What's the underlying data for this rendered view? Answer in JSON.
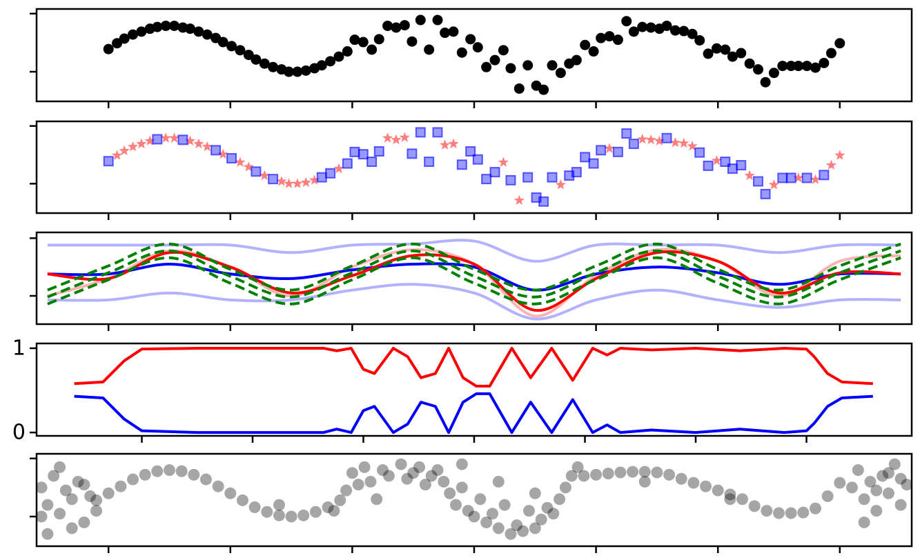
{
  "chart_data": [
    {
      "type": "scatter",
      "xlim": [
        -0.59,
        6.59
      ],
      "xticks": [
        0,
        1,
        2,
        3,
        4,
        5,
        6
      ],
      "ylim": [
        -0.51,
        1.08
      ],
      "yticks": [
        0,
        1
      ],
      "show_tick_labels": false,
      "series": [
        {
          "marker": "o",
          "color": "#000000",
          "alpha": 1,
          "x": [
            0,
            0.07,
            0.13,
            0.2,
            0.27,
            0.34,
            0.4,
            0.47,
            0.54,
            0.61,
            0.67,
            0.74,
            0.81,
            0.88,
            0.94,
            1.01,
            1.08,
            1.15,
            1.21,
            1.28,
            1.35,
            1.42,
            1.48,
            1.55,
            1.62,
            1.69,
            1.75,
            1.82,
            1.89,
            1.96,
            2.02,
            2.09,
            2.16,
            2.22,
            2.29,
            2.36,
            2.43,
            2.49,
            2.56,
            2.63,
            2.7,
            2.76,
            2.83,
            2.9,
            2.97,
            3.03,
            3.1,
            3.17,
            3.24,
            3.3,
            3.37,
            3.44,
            3.51,
            3.57,
            3.64,
            3.71,
            3.78,
            3.84,
            3.91,
            3.98,
            4.04,
            4.11,
            4.18,
            4.25,
            4.31,
            4.38,
            4.45,
            4.52,
            4.58,
            4.65,
            4.72,
            4.79,
            4.85,
            4.92,
            4.99,
            5.06,
            5.12,
            5.19,
            5.26,
            5.33,
            5.39,
            5.46,
            5.53,
            5.6,
            5.66,
            5.73,
            5.8,
            5.87,
            5.93,
            6.0
          ],
          "values": [
            0.39,
            0.49,
            0.57,
            0.64,
            0.69,
            0.74,
            0.77,
            0.79,
            0.79,
            0.76,
            0.74,
            0.69,
            0.64,
            0.58,
            0.51,
            0.44,
            0.37,
            0.29,
            0.21,
            0.14,
            0.08,
            0.04,
            0,
            0,
            0.02,
            0.06,
            0.11,
            0.18,
            0.26,
            0.35,
            0.55,
            0.51,
            0.38,
            0.56,
            0.79,
            0.76,
            0.8,
            0.52,
            0.89,
            0.38,
            0.89,
            0.67,
            0.69,
            0.33,
            0.56,
            0.42,
            0.08,
            0.2,
            0.37,
            0.06,
            -0.29,
            0.11,
            -0.24,
            -0.31,
            0.11,
            -0.02,
            0.14,
            0.2,
            0.46,
            0.35,
            0.58,
            0.61,
            0.55,
            0.87,
            0.69,
            0.77,
            0.76,
            0.74,
            0.79,
            0.71,
            0.7,
            0.65,
            0.54,
            0.31,
            0.4,
            0.38,
            0.26,
            0.32,
            0.14,
            0.04,
            -0.18,
            -0.02,
            0.1,
            0.1,
            0.1,
            0.1,
            0.07,
            0.15,
            0.32,
            0.49
          ]
        }
      ]
    },
    {
      "type": "scatter",
      "xlim": [
        -0.59,
        6.59
      ],
      "xticks": [
        0,
        1,
        2,
        3,
        4,
        5,
        6
      ],
      "ylim": [
        -0.51,
        1.08
      ],
      "yticks": [
        0,
        1
      ],
      "show_tick_labels": false,
      "series": [
        {
          "marker": "*",
          "color": "#ff0000",
          "alpha": 0.5,
          "x": [
            0.07,
            0.13,
            0.2,
            0.27,
            0.34,
            0.47,
            0.54,
            0.67,
            0.74,
            0.81,
            0.94,
            1.08,
            1.15,
            1.28,
            1.42,
            1.48,
            1.55,
            1.62,
            1.69,
            1.89,
            2.29,
            2.36,
            2.43,
            2.76,
            2.83,
            3.24,
            3.37,
            3.71,
            4.11,
            4.38,
            4.45,
            4.52,
            4.65,
            4.72,
            4.79,
            4.99,
            5.26,
            5.46,
            5.66,
            5.8,
            5.93,
            6.0
          ],
          "values": [
            0.49,
            0.57,
            0.64,
            0.69,
            0.74,
            0.79,
            0.79,
            0.74,
            0.69,
            0.64,
            0.51,
            0.37,
            0.29,
            0.14,
            0.04,
            0,
            0,
            0.02,
            0.06,
            0.26,
            0.79,
            0.76,
            0.8,
            0.67,
            0.69,
            0.37,
            -0.29,
            -0.02,
            0.61,
            0.77,
            0.76,
            0.74,
            0.71,
            0.7,
            0.65,
            0.4,
            0.14,
            -0.02,
            0.1,
            0.07,
            0.32,
            0.49
          ]
        },
        {
          "marker": "s",
          "color": "#0000ff",
          "alpha": 0.4,
          "x": [
            0,
            0.4,
            0.61,
            0.88,
            1.01,
            1.21,
            1.35,
            1.75,
            1.82,
            1.96,
            2.02,
            2.09,
            2.16,
            2.22,
            2.49,
            2.56,
            2.63,
            2.7,
            2.9,
            2.97,
            3.03,
            3.1,
            3.17,
            3.3,
            3.44,
            3.51,
            3.57,
            3.64,
            3.78,
            3.84,
            3.91,
            3.98,
            4.04,
            4.18,
            4.25,
            4.31,
            4.58,
            4.85,
            4.92,
            5.06,
            5.12,
            5.19,
            5.33,
            5.39,
            5.53,
            5.6,
            5.73,
            5.87
          ],
          "values": [
            0.39,
            0.77,
            0.76,
            0.58,
            0.44,
            0.21,
            0.08,
            0.11,
            0.18,
            0.35,
            0.55,
            0.51,
            0.38,
            0.56,
            0.52,
            0.89,
            0.38,
            0.89,
            0.33,
            0.56,
            0.42,
            0.08,
            0.2,
            0.06,
            0.11,
            -0.24,
            -0.31,
            0.11,
            0.14,
            0.2,
            0.46,
            0.35,
            0.58,
            0.55,
            0.87,
            0.69,
            0.79,
            0.54,
            0.31,
            0.38,
            0.26,
            0.32,
            0.04,
            -0.18,
            0.1,
            0.1,
            0.1,
            0.15
          ]
        }
      ]
    },
    {
      "type": "line",
      "smooth": true,
      "xlim": [
        -0.59,
        6.59
      ],
      "xticks": [
        0,
        1,
        2,
        3,
        4,
        5,
        6
      ],
      "ylim": [
        -0.49,
        1.1
      ],
      "yticks": [
        0,
        1
      ],
      "show_tick_labels": false,
      "x": [
        -0.5,
        0,
        0.5,
        1,
        1.5,
        2,
        2.5,
        3,
        3.5,
        4,
        4.5,
        5,
        5.5,
        6,
        6.5
      ],
      "series": [
        {
          "color": "#0000ff",
          "alpha": 0.3,
          "linestyle": "solid",
          "values": [
            0.88,
            0.88,
            0.88,
            0.88,
            0.75,
            0.88,
            0.9,
            0.95,
            0.6,
            0.88,
            0.88,
            0.88,
            0.75,
            0.88,
            0.88
          ]
        },
        {
          "color": "#0000ff",
          "alpha": 0.3,
          "linestyle": "solid",
          "values": [
            -0.07,
            -0.07,
            0.05,
            -0.07,
            -0.07,
            0.1,
            0.2,
            0.05,
            -0.4,
            -0.07,
            0.1,
            -0.07,
            -0.2,
            -0.07,
            -0.07
          ]
        },
        {
          "color": "#ff0000",
          "alpha": 0.3,
          "linestyle": "solid",
          "values": [
            0.0,
            0.3,
            0.78,
            0.5,
            0.0,
            0.5,
            0.8,
            0.55,
            -0.35,
            0.35,
            0.8,
            0.6,
            0.0,
            0.6,
            0.7
          ]
        },
        {
          "color": "#0000ff",
          "alpha": 1,
          "linestyle": "solid",
          "values": [
            0.38,
            0.38,
            0.55,
            0.38,
            0.3,
            0.45,
            0.55,
            0.5,
            0.1,
            0.38,
            0.5,
            0.4,
            0.2,
            0.38,
            0.38
          ]
        },
        {
          "color": "#ff0000",
          "alpha": 1,
          "linestyle": "solid",
          "values": [
            0.38,
            0.3,
            0.75,
            0.5,
            0.05,
            0.35,
            0.7,
            0.55,
            -0.25,
            0.3,
            0.75,
            0.6,
            0.05,
            0.4,
            0.38
          ]
        },
        {
          "color": "#008000",
          "alpha": 1,
          "linestyle": "dashed",
          "values": [
            0.1,
            0.52,
            0.9,
            0.46,
            0.1,
            0.52,
            0.9,
            0.46,
            0.1,
            0.52,
            0.9,
            0.46,
            0.1,
            0.52,
            0.9
          ]
        },
        {
          "color": "#008000",
          "alpha": 1,
          "linestyle": "dashed",
          "values": [
            -0.02,
            0.4,
            0.78,
            0.34,
            -0.02,
            0.4,
            0.78,
            0.34,
            -0.02,
            0.4,
            0.78,
            0.34,
            -0.02,
            0.4,
            0.78
          ]
        },
        {
          "color": "#008000",
          "alpha": 1,
          "linestyle": "dashed",
          "values": [
            -0.14,
            0.28,
            0.66,
            0.22,
            -0.14,
            0.28,
            0.66,
            0.22,
            -0.14,
            0.28,
            0.66,
            0.22,
            -0.14,
            0.28,
            0.66
          ]
        }
      ]
    },
    {
      "type": "line",
      "smooth": false,
      "xlim": [
        -0.95,
        6.95
      ],
      "xticks": [
        0,
        1,
        2,
        3,
        4,
        5,
        6
      ],
      "ylim": [
        -0.04,
        1.057
      ],
      "yticks": [
        0,
        1
      ],
      "show_tick_labels": true,
      "x": [
        -0.61,
        -0.35,
        -0.16,
        0,
        0.5,
        1,
        1.5,
        1.64,
        1.76,
        1.89,
        2.0,
        2.1,
        2.27,
        2.4,
        2.52,
        2.65,
        2.77,
        2.9,
        3.02,
        3.14,
        3.34,
        3.51,
        3.7,
        3.89,
        4.07,
        4.2,
        4.32,
        4.6,
        5.0,
        5.4,
        5.8,
        6.0,
        6.07,
        6.19,
        6.32,
        6.6
      ],
      "series": [
        {
          "color": "#ff0000",
          "alpha": 1,
          "linestyle": "solid",
          "values": [
            0.58,
            0.6,
            0.85,
            0.99,
            1,
            1,
            1,
            1,
            0.97,
            1,
            0.75,
            0.7,
            1,
            0.9,
            0.65,
            0.7,
            1,
            0.65,
            0.55,
            0.55,
            1,
            0.65,
            1,
            0.62,
            1,
            0.92,
            1,
            0.98,
            1,
            0.97,
            1,
            0.99,
            0.9,
            0.7,
            0.6,
            0.58
          ]
        },
        {
          "color": "#0000ff",
          "alpha": 1,
          "linestyle": "solid",
          "values": [
            0.43,
            0.41,
            0.16,
            0.02,
            0,
            0,
            0,
            0,
            0.04,
            0,
            0.26,
            0.31,
            0,
            0.1,
            0.36,
            0.31,
            0,
            0.36,
            0.46,
            0.46,
            0,
            0.36,
            0,
            0.39,
            0,
            0.09,
            0,
            0.03,
            0,
            0.04,
            0,
            0.02,
            0.11,
            0.31,
            0.41,
            0.43
          ]
        }
      ]
    },
    {
      "type": "scatter",
      "xlim": [
        -0.59,
        6.59
      ],
      "xticks": [
        0,
        1,
        2,
        3,
        4,
        5,
        6
      ],
      "ylim": [
        -0.51,
        1.08
      ],
      "yticks": [
        0,
        1
      ],
      "show_tick_labels": false,
      "series": [
        {
          "marker": "o",
          "color": "#000000",
          "alpha": 0.35,
          "x": [
            -0.1,
            0,
            0.1,
            0.2,
            0.3,
            0.4,
            0.5,
            0.6,
            0.7,
            0.8,
            0.9,
            1.0,
            1.1,
            1.2,
            1.3,
            1.4,
            1.5,
            1.6,
            1.7,
            1.8,
            1.9,
            3.9,
            4.0,
            4.1,
            4.2,
            4.3,
            4.4,
            4.5,
            4.6,
            4.7,
            4.8,
            4.9,
            5.0,
            5.1,
            5.2,
            5.3,
            5.4,
            5.5,
            5.6,
            5.7,
            5.8,
            5.9,
            6.0,
            -0.55,
            -0.5,
            -0.45,
            -0.4,
            -0.35,
            -0.3,
            -0.25,
            -0.2,
            -0.15,
            -0.5,
            -0.4,
            -0.3,
            -0.2,
            -0.55,
            -0.1,
            2.0,
            2.05,
            2.1,
            2.15,
            2.2,
            2.25,
            2.3,
            2.4,
            2.45,
            2.5,
            2.55,
            2.6,
            2.65,
            2.7,
            2.75,
            2.8,
            2.85,
            2.9,
            2.95,
            3.0,
            3.05,
            3.1,
            3.15,
            3.2,
            3.25,
            3.3,
            3.35,
            3.4,
            3.45,
            3.5,
            3.55,
            3.6,
            3.65,
            3.7,
            3.75,
            3.8,
            3.85,
            2.9,
            3.2,
            1.95,
            1.85,
            3.5,
            6.1,
            6.15,
            6.2,
            6.25,
            6.3,
            6.35,
            6.4,
            6.45,
            6.5,
            6.55,
            6.2,
            6.4,
            6.3,
            6.5,
            5.1,
            4.4,
            1.4
          ],
          "values": [
            0.28,
            0.4,
            0.52,
            0.64,
            0.72,
            0.78,
            0.8,
            0.78,
            0.72,
            0.64,
            0.52,
            0.4,
            0.28,
            0.16,
            0.08,
            0.02,
            0,
            0.02,
            0.08,
            0.16,
            0.28,
            0.7,
            0.72,
            0.74,
            0.76,
            0.77,
            0.77,
            0.76,
            0.72,
            0.65,
            0.58,
            0.52,
            0.45,
            0.38,
            0.3,
            0.18,
            0.1,
            0.06,
            0.06,
            0.07,
            0.14,
            0.35,
            0.58,
            0.5,
            0.2,
            0.7,
            0.05,
            0.45,
            0.3,
            0.6,
            -0.1,
            0.35,
            -0.3,
            0.85,
            -0.2,
            0.55,
            0.0,
            0.1,
            0.75,
            0.55,
            0.85,
            0.6,
            0.3,
            0.8,
            0.7,
            0.9,
            0.65,
            0.75,
            0.85,
            0.55,
            0.7,
            0.8,
            0.6,
            0.4,
            0.2,
            0.5,
            0.1,
            0.0,
            0.3,
            -0.1,
            0.05,
            -0.2,
            0.2,
            -0.3,
            -0.15,
            -0.25,
            0.1,
            -0.2,
            -0.05,
            0.15,
            0.05,
            0.3,
            0.5,
            0.7,
            0.85,
            0.9,
            0.6,
            0.45,
            0.1,
            0.4,
            0.5,
            0.8,
            0.3,
            0.6,
            0.1,
            0.7,
            0.4,
            0.9,
            0.2,
            0.55,
            -0.1,
            0.75,
            0.45,
            0.65,
            0.3,
            0.6,
            0.2
          ]
        }
      ]
    }
  ]
}
